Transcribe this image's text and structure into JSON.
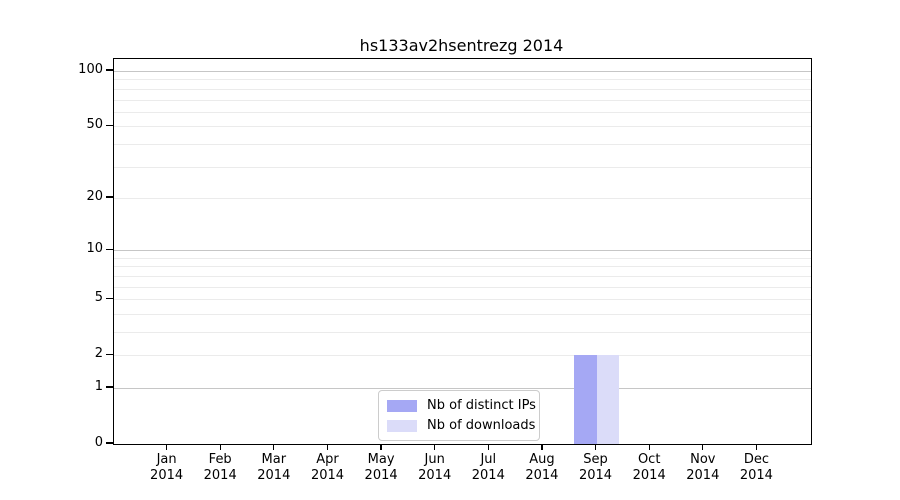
{
  "chart_data": {
    "type": "bar",
    "title": "hs133av2hsentrezg 2014",
    "categories": [
      "Jan",
      "Feb",
      "Mar",
      "Apr",
      "May",
      "Jun",
      "Jul",
      "Aug",
      "Sep",
      "Oct",
      "Nov",
      "Dec"
    ],
    "x_year": "2014",
    "series": [
      {
        "name": "Nb of distinct IPs",
        "color": "#a5a8f4",
        "values": [
          0,
          0,
          0,
          0,
          0,
          0,
          0,
          0,
          2,
          0,
          0,
          0
        ]
      },
      {
        "name": "Nb of downloads",
        "color": "#dbdcf9",
        "values": [
          0,
          0,
          0,
          0,
          0,
          0,
          0,
          0,
          2,
          0,
          0,
          0
        ]
      }
    ],
    "y_axis": {
      "scale": "log1p",
      "ylim": [
        0,
        100
      ],
      "ticks": [
        0,
        1,
        2,
        5,
        10,
        20,
        50,
        100
      ],
      "major_gridlines": [
        1,
        10,
        100
      ],
      "minor_gridlines": [
        2,
        3,
        4,
        5,
        6,
        7,
        8,
        9,
        20,
        30,
        40,
        50,
        60,
        70,
        80,
        90
      ]
    },
    "xlabel": "",
    "ylabel": "",
    "grid": true,
    "legend": {
      "position": "bottom-center",
      "entries": [
        "Nb of distinct IPs",
        "Nb of downloads"
      ]
    }
  },
  "colors": {
    "background": "#ffffff",
    "spine": "#000000",
    "text": "#000000",
    "major_grid": "#c6c6c6",
    "minor_grid": "#ebebeb",
    "legend_border": "#cccccc"
  }
}
